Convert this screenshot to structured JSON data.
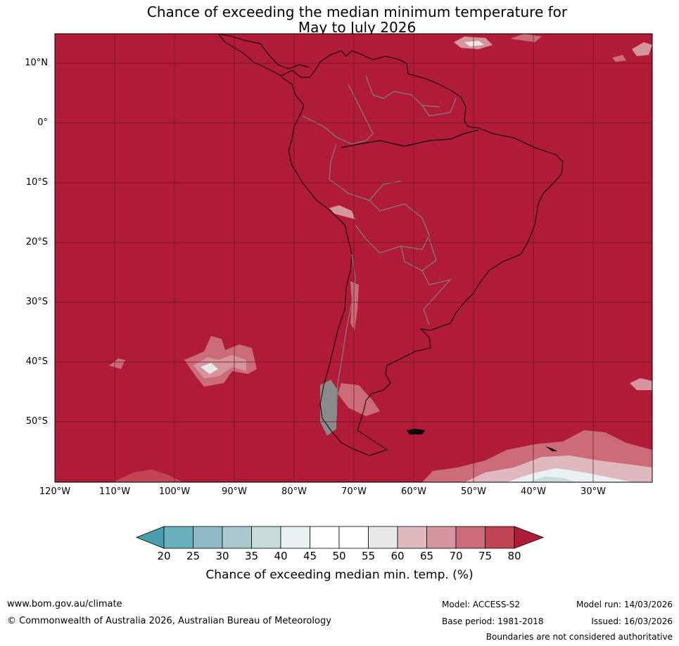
{
  "title_line1": "Chance of exceeding the median minimum temperature for",
  "title_line2": "May to July 2026",
  "lat_labels": [
    "10°N",
    "0°",
    "10°S",
    "20°S",
    "30°S",
    "40°S",
    "50°S"
  ],
  "lon_labels": [
    "120°W",
    "110°W",
    "100°W",
    "90°W",
    "80°W",
    "70°W",
    "60°W",
    "50°W",
    "40°W",
    "30°W"
  ],
  "colorbar": {
    "ticks": [
      "20",
      "25",
      "30",
      "35",
      "40",
      "45",
      "50",
      "55",
      "60",
      "65",
      "70",
      "75",
      "80"
    ],
    "colors": [
      "#6aafbe",
      "#8fb9c5",
      "#aac8ce",
      "#c9dadb",
      "#e9f1f2",
      "#ffffff",
      "#ffffff",
      "#e9e9e9",
      "#e0b9bf",
      "#d6959e",
      "#cb6c78",
      "#c04454"
    ],
    "under_color": "#4a9faf",
    "over_color": "#b01c38",
    "label": "Chance of exceeding median min. temp. (%)"
  },
  "map": {
    "dominant_category": ">80",
    "dominant_color": "#b01c38",
    "land_outline_color": "#000000",
    "border_color": "#808080",
    "grid_color": "#6a1020"
  },
  "footer": {
    "website": "www.bom.gov.au/climate",
    "copyright": "© Commonwealth of Australia 2026, Australian Bureau of Meteorology",
    "model": "Model: ACCESS-S2",
    "base_period": "Base period: 1981-2018",
    "model_run": "Model run: 14/03/2026",
    "issued": "Issued: 16/03/2026",
    "disclaimer": "Boundaries are not considered authoritative"
  }
}
